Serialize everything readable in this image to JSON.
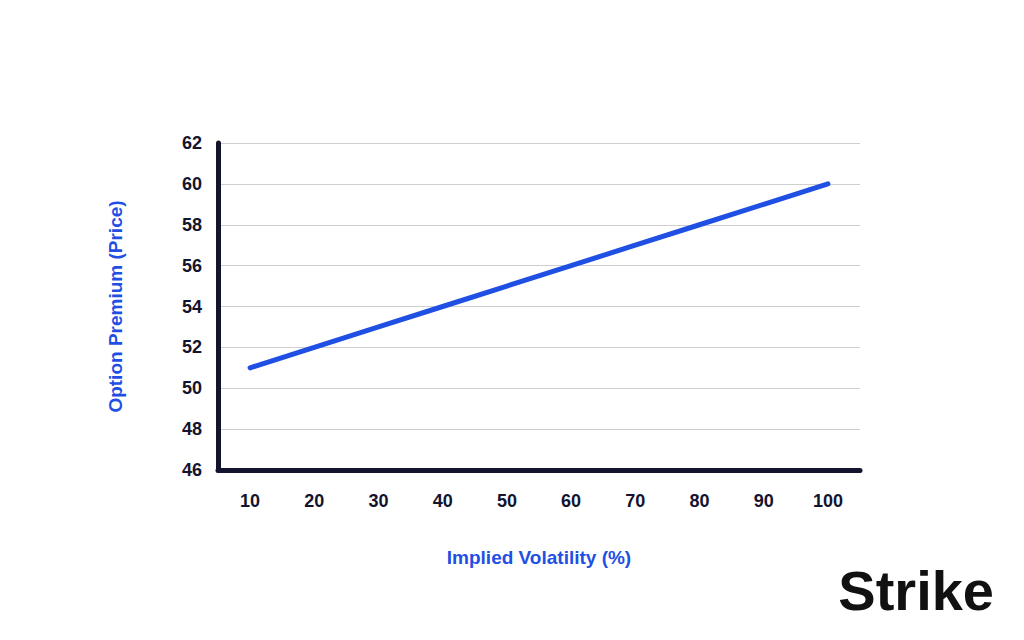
{
  "chart_data": {
    "type": "line",
    "x_label": "Implied Volatility (%)",
    "y_label": "Option Premium (Price)",
    "categories": [
      "10",
      "20",
      "30",
      "40",
      "50",
      "60",
      "70",
      "80",
      "90",
      "100"
    ],
    "values": [
      51,
      52,
      53,
      54,
      55,
      56,
      57,
      58,
      59,
      60
    ],
    "color": "#1f4fe3",
    "ylim": [
      46,
      62
    ],
    "yticks": [
      46,
      48,
      50,
      52,
      54,
      56,
      58,
      60,
      62
    ],
    "grid": true,
    "annotations": [
      "Strike"
    ]
  }
}
